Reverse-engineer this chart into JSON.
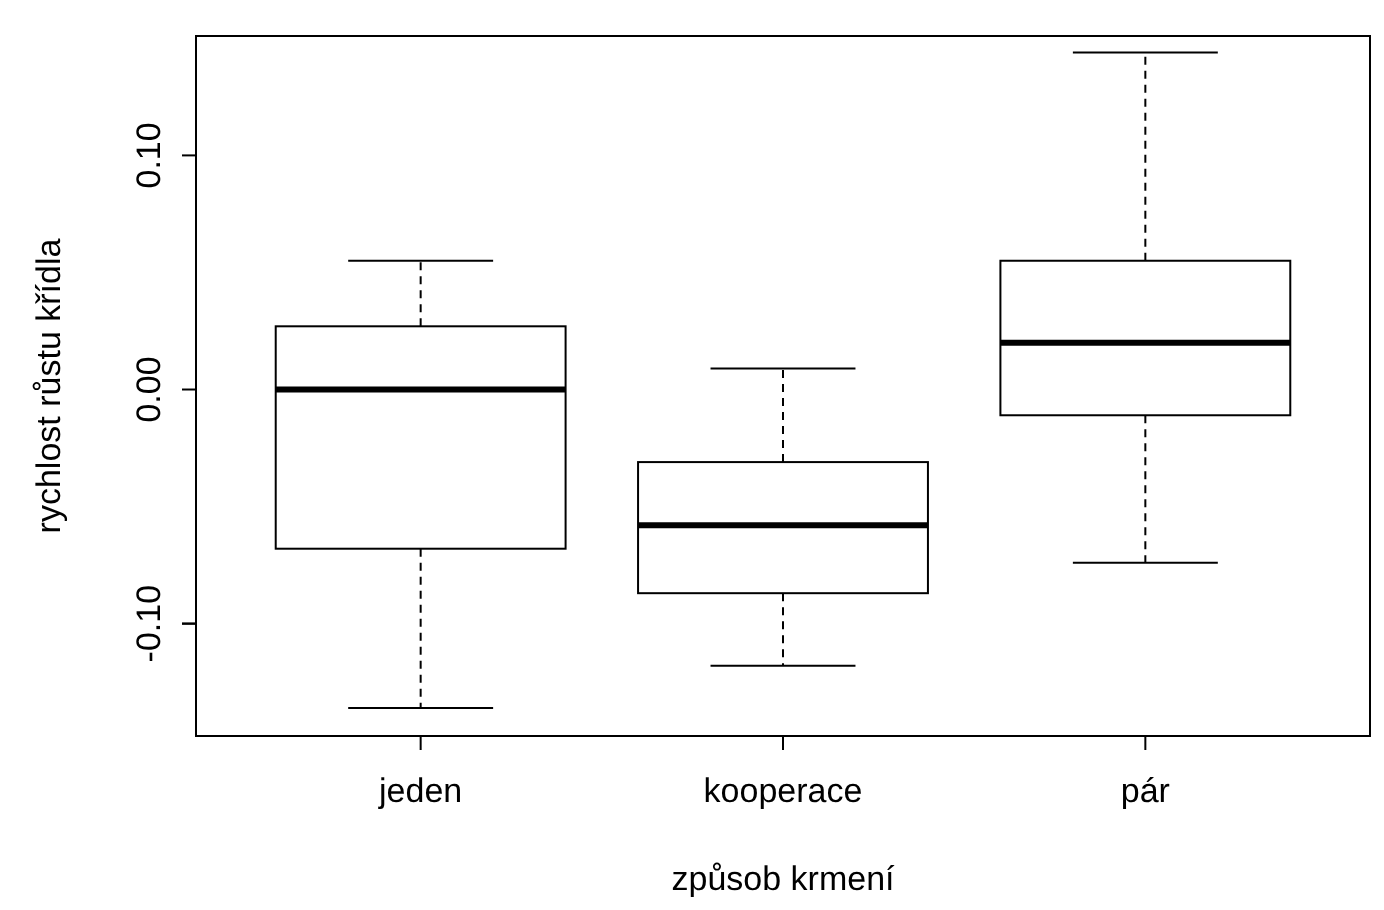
{
  "chart_data": {
    "type": "box",
    "xlabel": "způsob krmení",
    "ylabel": "rychlost růstu křídla",
    "categories": [
      "jeden",
      "kooperace",
      "pár"
    ],
    "ylim": [
      -0.148,
      0.151
    ],
    "yticks": [
      {
        "value": -0.1,
        "label": "-0.10"
      },
      {
        "value": 0,
        "label": "0.00"
      },
      {
        "value": 0.1,
        "label": "0.10"
      }
    ],
    "grid": false,
    "boxes": [
      {
        "low": -0.136,
        "q1": -0.068,
        "median": 0,
        "q3": 0.027,
        "high": 0.055
      },
      {
        "low": -0.118,
        "q1": -0.087,
        "median": -0.058,
        "q3": -0.031,
        "high": 0.009
      },
      {
        "low": -0.074,
        "q1": -0.011,
        "median": 0.02,
        "q3": 0.055,
        "high": 0.144
      }
    ]
  }
}
